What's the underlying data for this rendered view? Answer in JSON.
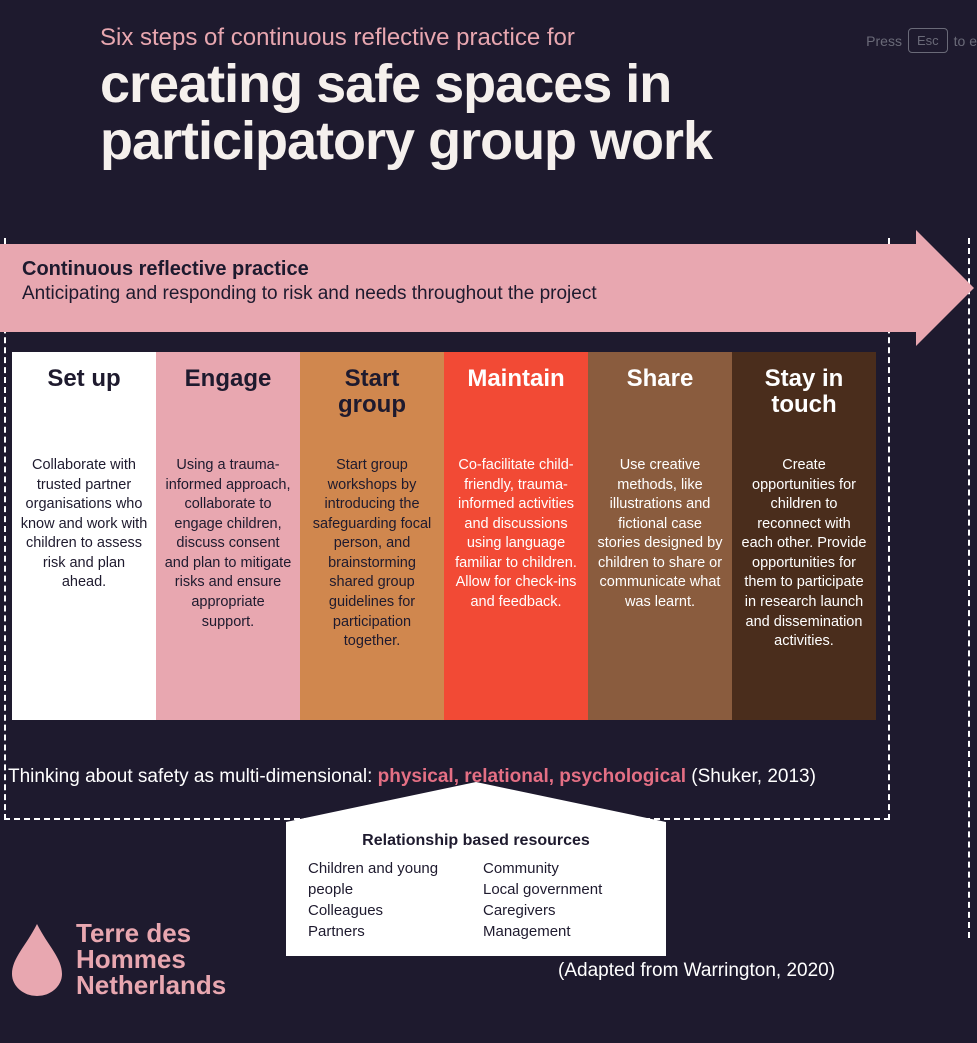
{
  "colors": {
    "background": "#1e1a2e",
    "accent_pink": "#e8a7b0",
    "accent_dark_pink": "#e46f84",
    "title_text": "#f5f0ed",
    "white": "#ffffff",
    "hint_gray": "#6a6a78"
  },
  "esc_hint": {
    "press": "Press",
    "key": "Esc",
    "tail": "to e"
  },
  "header": {
    "pretitle": "Six steps of continuous reflective practice for",
    "title": "creating safe spaces in participatory group work"
  },
  "arrow": {
    "title": "Continuous reflective practice",
    "subtitle": "Anticipating and responding to risk and needs throughout the project",
    "background": "#e8a7b0",
    "text_color": "#1e1a2e"
  },
  "steps": [
    {
      "title": "Set up",
      "body": "Collaborate with trusted partner organisations who know and work with children to assess risk and plan ahead.",
      "bg": "#ffffff",
      "title_color": "#1e1a2e",
      "body_color": "#1e1a2e"
    },
    {
      "title": "Engage",
      "body": "Using a trauma-informed approach, collaborate to engage children, discuss consent and plan to mitigate risks and ensure appropriate support.",
      "bg": "#e8a7b0",
      "title_color": "#1e1a2e",
      "body_color": "#1e1a2e"
    },
    {
      "title": "Start group",
      "body": "Start group workshops by introducing the safeguarding focal person, and brainstorming shared group guidelines for participation together.",
      "bg": "#d0874e",
      "title_color": "#1e1a2e",
      "body_color": "#1e1a2e"
    },
    {
      "title": "Maintain",
      "body": "Co-facilitate child-friendly, trauma-informed activities and discussions using language familiar to children. Allow for check-ins and feedback.",
      "bg": "#f24a35",
      "title_color": "#ffffff",
      "body_color": "#ffffff"
    },
    {
      "title": "Share",
      "body": "Use creative methods, like illustrations and fictional case stories designed by children to share or communicate what was learnt.",
      "bg": "#8a5c3e",
      "title_color": "#ffffff",
      "body_color": "#ffffff"
    },
    {
      "title": "Stay in touch",
      "body": "Create opportunities for children to reconnect with each other. Provide opportunities for them to participate in research launch and  dissemination activities.",
      "bg": "#4a2d1c",
      "title_color": "#ffffff",
      "body_color": "#ffffff"
    }
  ],
  "safety_line": {
    "prefix": "Thinking about safety as multi-dimensional: ",
    "p1": "physical",
    "sep1": ", ",
    "p2": "relational",
    "sep2": ", ",
    "p3": "psychological",
    "suffix": " (Shuker, 2013)"
  },
  "resources": {
    "title": "Relationship based resources",
    "col1": [
      "Children and young people",
      "Colleagues",
      "Partners"
    ],
    "col2": [
      "Community",
      "Local government",
      "Caregivers",
      "Management"
    ]
  },
  "adapted": "(Adapted from Warrington, 2020)",
  "logo": {
    "line1": "Terre des",
    "line2": "Hommes",
    "line3": "Netherlands",
    "color": "#e8a7b0"
  }
}
